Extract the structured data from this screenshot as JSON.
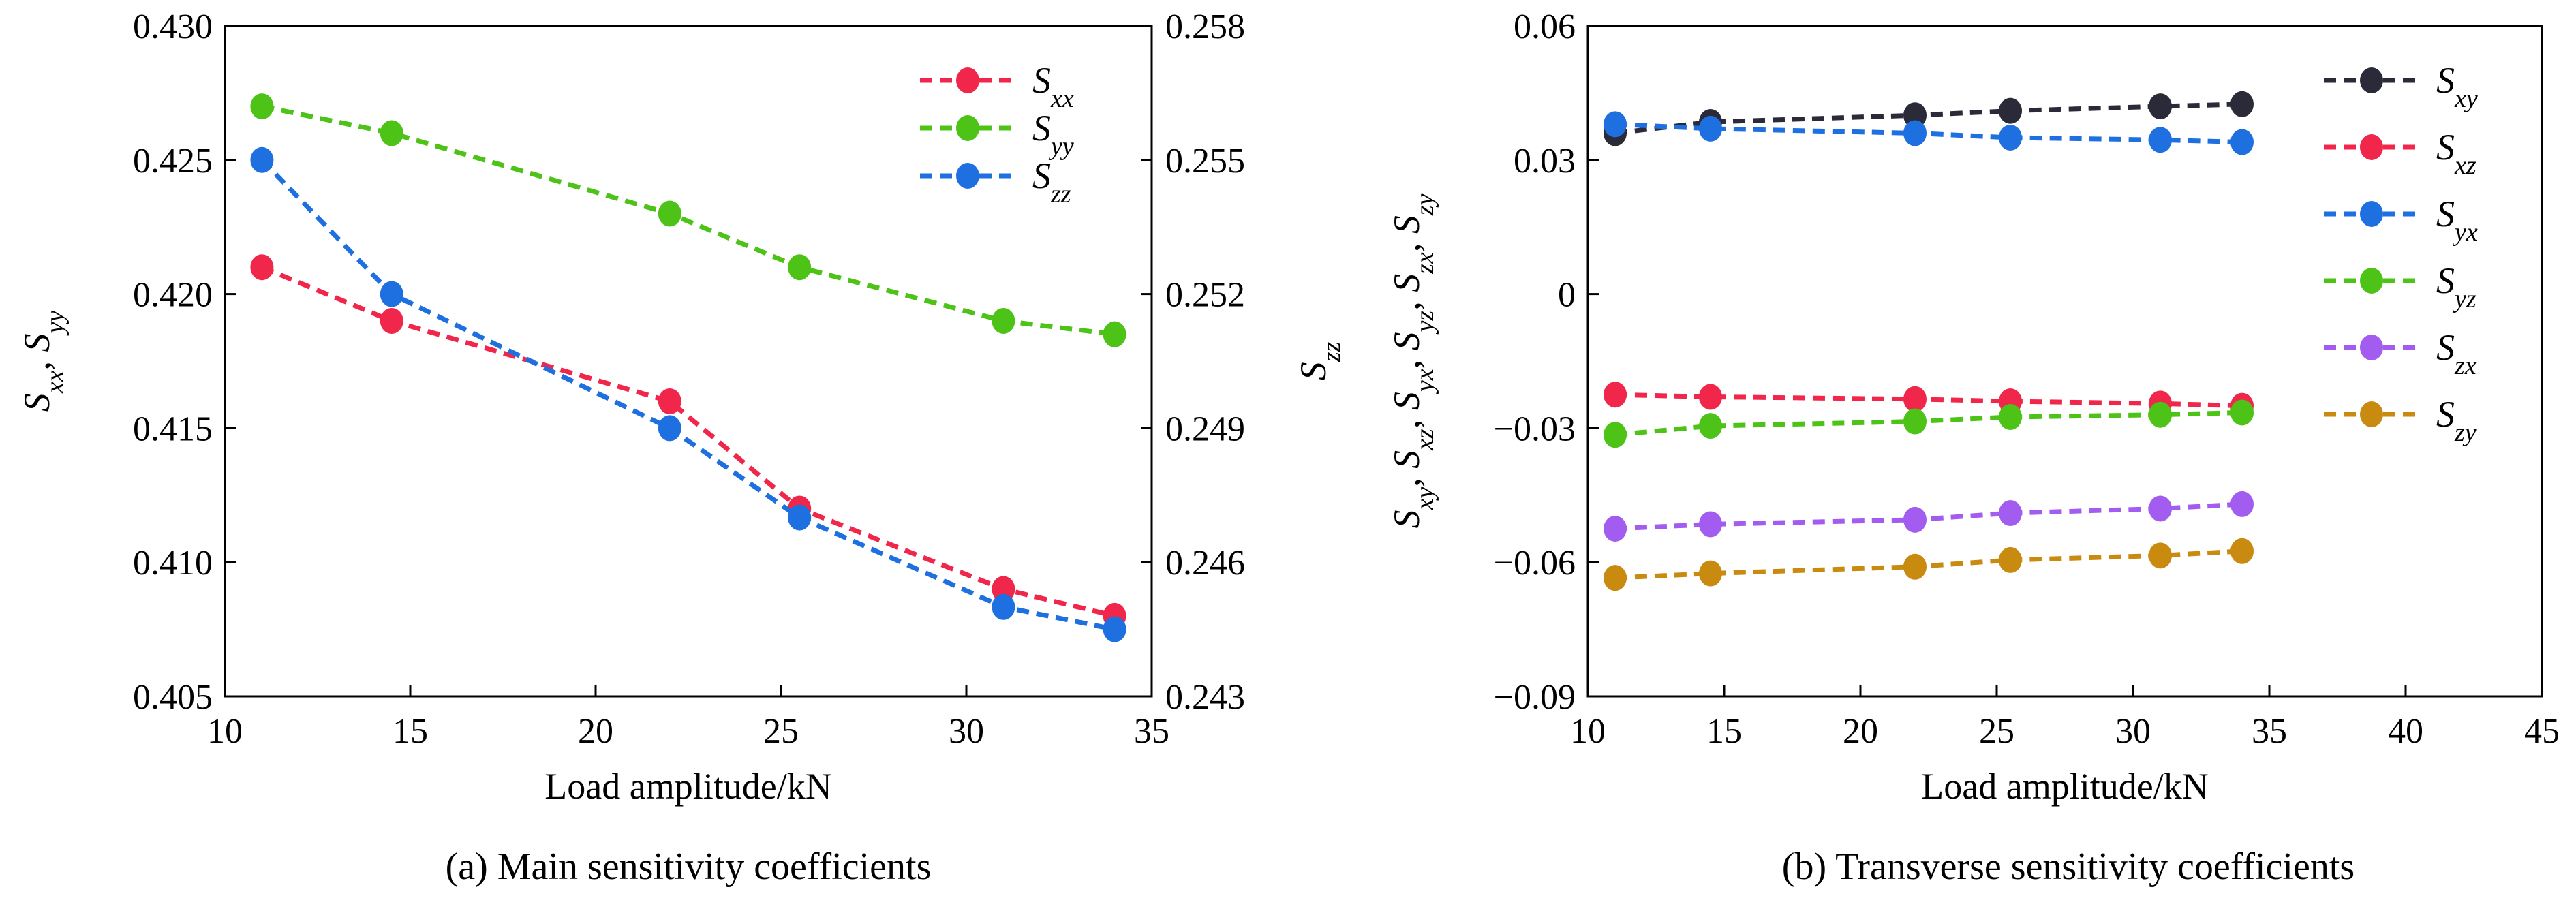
{
  "chart_data": [
    {
      "type": "line",
      "caption": "(a) Main sensitivity coefficients",
      "xlabel": "Load amplitude/kN",
      "ylabel_left": {
        "parts": [
          [
            "S",
            "xx"
          ],
          [
            "S",
            "yy"
          ]
        ]
      },
      "ylabel_right": {
        "parts": [
          [
            "S",
            "zz"
          ]
        ]
      },
      "xlim": [
        10,
        35
      ],
      "xticks": [
        10,
        15,
        20,
        25,
        30,
        35
      ],
      "ylim_left": [
        0.405,
        0.43
      ],
      "yticks_left": [
        "0.405",
        "0.410",
        "0.415",
        "0.420",
        "0.425",
        "0.430"
      ],
      "ylim_right": [
        0.243,
        0.258
      ],
      "yticks_right": [
        "0.243",
        "0.246",
        "0.249",
        "0.252",
        "0.255",
        "0.258"
      ],
      "legend_position": "top-right",
      "series": [
        {
          "name": "S",
          "sub": "xx",
          "color": "#f0264a",
          "axis": "left",
          "x": [
            11,
            14.5,
            22,
            25.5,
            31,
            34
          ],
          "y": [
            0.421,
            0.419,
            0.416,
            0.412,
            0.409,
            0.408
          ]
        },
        {
          "name": "S",
          "sub": "yy",
          "color": "#4dc217",
          "axis": "left",
          "x": [
            11,
            14.5,
            22,
            25.5,
            31,
            34
          ],
          "y": [
            0.427,
            0.426,
            0.423,
            0.421,
            0.419,
            0.4185
          ]
        },
        {
          "name": "S",
          "sub": "zz",
          "color": "#1e6fe0",
          "axis": "right",
          "x": [
            11,
            14.5,
            22,
            25.5,
            31,
            34
          ],
          "y": [
            0.255,
            0.252,
            0.249,
            0.247,
            0.245,
            0.2445
          ]
        }
      ]
    },
    {
      "type": "line",
      "caption": "(b) Transverse sensitivity coefficients",
      "xlabel": "Load amplitude/kN",
      "ylabel_left": {
        "parts": [
          [
            "S",
            "xy"
          ],
          [
            "S",
            "xz"
          ],
          [
            "S",
            "yx"
          ],
          [
            "S",
            "yz"
          ],
          [
            "S",
            "zx"
          ],
          [
            "S",
            "zy"
          ]
        ]
      },
      "xlim": [
        10,
        45
      ],
      "xticks": [
        10,
        15,
        20,
        25,
        30,
        35,
        40,
        45
      ],
      "ylim_left": [
        -0.09,
        0.06
      ],
      "yticks_left": [
        "−0.09",
        "−0.06",
        "−0.03",
        "0",
        "0.03",
        "0.06"
      ],
      "legend_position": "top-right",
      "series": [
        {
          "name": "S",
          "sub": "xy",
          "color": "#2a2a38",
          "axis": "left",
          "x": [
            11,
            14.5,
            22,
            25.5,
            31,
            34
          ],
          "y": [
            0.036,
            0.0385,
            0.04,
            0.041,
            0.042,
            0.0425
          ]
        },
        {
          "name": "S",
          "sub": "xz",
          "color": "#f0264a",
          "axis": "left",
          "x": [
            11,
            14.5,
            22,
            25.5,
            31,
            34
          ],
          "y": [
            -0.0225,
            -0.023,
            -0.0235,
            -0.024,
            -0.0245,
            -0.025
          ]
        },
        {
          "name": "S",
          "sub": "yx",
          "color": "#1e6fe0",
          "axis": "left",
          "x": [
            11,
            14.5,
            22,
            25.5,
            31,
            34
          ],
          "y": [
            0.038,
            0.037,
            0.036,
            0.035,
            0.0345,
            0.034
          ]
        },
        {
          "name": "S",
          "sub": "yz",
          "color": "#4dc217",
          "axis": "left",
          "x": [
            11,
            14.5,
            22,
            25.5,
            31,
            34
          ],
          "y": [
            -0.0315,
            -0.0295,
            -0.0285,
            -0.0275,
            -0.027,
            -0.0265
          ]
        },
        {
          "name": "S",
          "sub": "zx",
          "color": "#a35cf0",
          "axis": "left",
          "x": [
            11,
            14.5,
            22,
            25.5,
            31,
            34
          ],
          "y": [
            -0.0525,
            -0.0515,
            -0.0505,
            -0.049,
            -0.048,
            -0.047
          ]
        },
        {
          "name": "S",
          "sub": "zy",
          "color": "#c98a10",
          "axis": "left",
          "x": [
            11,
            14.5,
            22,
            25.5,
            31,
            34
          ],
          "y": [
            -0.0635,
            -0.0625,
            -0.061,
            -0.0595,
            -0.0585,
            -0.0575
          ]
        }
      ]
    }
  ]
}
